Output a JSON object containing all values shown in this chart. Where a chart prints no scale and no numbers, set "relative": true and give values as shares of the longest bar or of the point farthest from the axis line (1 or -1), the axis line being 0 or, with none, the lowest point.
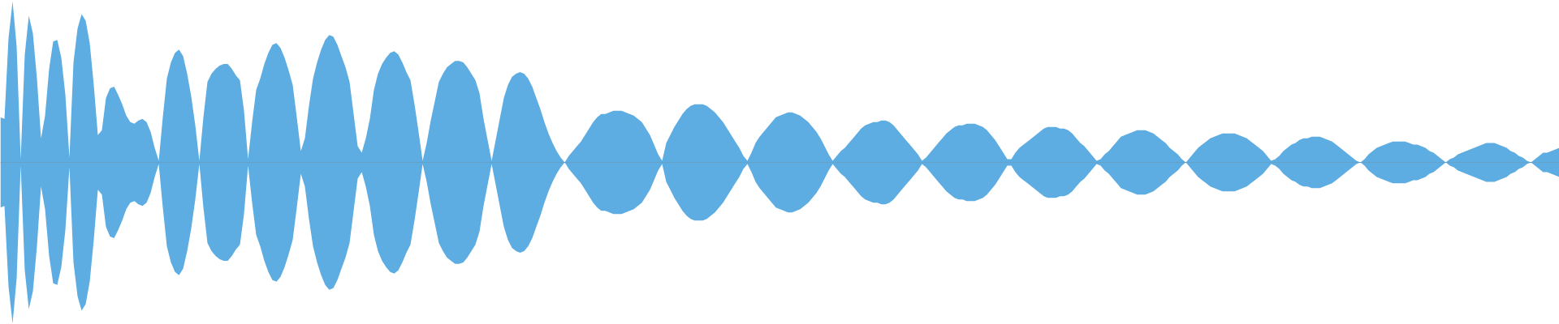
{
  "chart_data": {
    "type": "area",
    "relative": true,
    "tick_labels": false,
    "categories": [
      null,
      null,
      null,
      null,
      null,
      null,
      null,
      null,
      null,
      null,
      null,
      null,
      null,
      null,
      null,
      null,
      null,
      null,
      null,
      null,
      null,
      null,
      null,
      null,
      null,
      null,
      null,
      null,
      null,
      null,
      null,
      null,
      null,
      null,
      null,
      null,
      null,
      null,
      null,
      null,
      null,
      null,
      null,
      null,
      null,
      null,
      null,
      null,
      null,
      null,
      null,
      null,
      null,
      null,
      null,
      null,
      null,
      null,
      null,
      null,
      null,
      null,
      null,
      null,
      null,
      null,
      null,
      null,
      null,
      null,
      null,
      null,
      null,
      null,
      null,
      null,
      null,
      null,
      null,
      null,
      null,
      null,
      null,
      null,
      null,
      null,
      null,
      null,
      null,
      null,
      null,
      null,
      null,
      null,
      null,
      null,
      null,
      null,
      null,
      null,
      null,
      null,
      null,
      null,
      null,
      null,
      null,
      null,
      null,
      null,
      null,
      null,
      null,
      null,
      null,
      null,
      null,
      null,
      null,
      null,
      null,
      null,
      null,
      null,
      null,
      null,
      null,
      null,
      null,
      null,
      null,
      null,
      null,
      null,
      null,
      null,
      null,
      null,
      null,
      null,
      null,
      null,
      null,
      null,
      null,
      null,
      null,
      null,
      null,
      null,
      null,
      null,
      null,
      null,
      null,
      null,
      null,
      null,
      null,
      null,
      null,
      null,
      null,
      null,
      null,
      null,
      null,
      null,
      null,
      null,
      null,
      null,
      null,
      null,
      null,
      null,
      null,
      null,
      null,
      null,
      null,
      null,
      null,
      null,
      null,
      null,
      null,
      null,
      null,
      null,
      null,
      null,
      null,
      null,
      null,
      null,
      null,
      null,
      null,
      null,
      null,
      null,
      null,
      null,
      null,
      null,
      null,
      null,
      null,
      null,
      null,
      null,
      null,
      null,
      null,
      null,
      null,
      null,
      null,
      null,
      null,
      null,
      null,
      null,
      null,
      null,
      null,
      null,
      null,
      null,
      null,
      null,
      null,
      null,
      null,
      null,
      null,
      null,
      null,
      null,
      null,
      null,
      null,
      null,
      null,
      null,
      null,
      null,
      null,
      null,
      null,
      null,
      null,
      null,
      null,
      null,
      null,
      null,
      null,
      null,
      null,
      null,
      null,
      null,
      null,
      null,
      null,
      null,
      null,
      null,
      null,
      null,
      null,
      null,
      null,
      null,
      null,
      null,
      null,
      null,
      null,
      null,
      null,
      null,
      null,
      null,
      null,
      null,
      null,
      null,
      null,
      null,
      null,
      null,
      null,
      null,
      null,
      null,
      null,
      null,
      null,
      null,
      null,
      null,
      null,
      null,
      null,
      null,
      null,
      null,
      null,
      null,
      null,
      null,
      null,
      null,
      null,
      null,
      null,
      null,
      null,
      null,
      null,
      null,
      null,
      null,
      null,
      null,
      null,
      null,
      null,
      null,
      null,
      null,
      null,
      null,
      null,
      null,
      null,
      null,
      null,
      null,
      null,
      null,
      null,
      null,
      null,
      null,
      null,
      null,
      null,
      null,
      null,
      null,
      null,
      null,
      null,
      null,
      null,
      null,
      null,
      null,
      null,
      null,
      null,
      null,
      null,
      null,
      null,
      null,
      null,
      null,
      null,
      null,
      null,
      null,
      null,
      null,
      null,
      null,
      null,
      null,
      null,
      null,
      null
    ],
    "series": [
      {
        "color": "#5dade2",
        "values": [
          0.28,
          0.27,
          0.77,
          1,
          0.72,
          0.02,
          0.67,
          0.91,
          0.8,
          0.52,
          0.15,
          0.29,
          0.58,
          0.75,
          0.76,
          0.65,
          0.42,
          0.03,
          0.62,
          0.83,
          0.92,
          0.88,
          0.74,
          0.48,
          0.17,
          0.2,
          0.4,
          0.46,
          0.47,
          0.42,
          0.36,
          0.29,
          0.25,
          0.24,
          0.26,
          0.27,
          0.25,
          0.19,
          0.09,
          0.01,
          0.28,
          0.52,
          0.62,
          0.68,
          0.7,
          0.66,
          0.55,
          0.41,
          0.23,
          0.01,
          0.28,
          0.5,
          0.55,
          0.58,
          0.6,
          0.61,
          0.61,
          0.58,
          0.54,
          0.51,
          0.32,
          0.02,
          0.25,
          0.45,
          0.52,
          0.61,
          0.68,
          0.73,
          0.74,
          0.71,
          0.65,
          0.57,
          0.48,
          0.28,
          0.07,
          0.15,
          0.35,
          0.52,
          0.62,
          0.7,
          0.76,
          0.79,
          0.78,
          0.73,
          0.66,
          0.59,
          0.5,
          0.3,
          0.1,
          0.06,
          0.15,
          0.27,
          0.45,
          0.55,
          0.61,
          0.65,
          0.68,
          0.69,
          0.67,
          0.62,
          0.56,
          0.51,
          0.36,
          0.19,
          0.01,
          0.12,
          0.26,
          0.38,
          0.5,
          0.55,
          0.59,
          0.61,
          0.63,
          0.63,
          0.62,
          0.59,
          0.55,
          0.51,
          0.43,
          0.27,
          0.14,
          0.01,
          0.14,
          0.27,
          0.4,
          0.48,
          0.53,
          0.55,
          0.56,
          0.55,
          0.52,
          0.47,
          0.4,
          0.33,
          0.25,
          0.18,
          0.12,
          0.07,
          0.03,
          0,
          0.04,
          0.07,
          0.1,
          0.13,
          0.17,
          0.21,
          0.25,
          0.28,
          0.3,
          0.3,
          0.31,
          0.32,
          0.32,
          0.32,
          0.31,
          0.3,
          0.29,
          0.27,
          0.25,
          0.21,
          0.17,
          0.11,
          0.05,
          0.01,
          0.12,
          0.17,
          0.22,
          0.26,
          0.3,
          0.33,
          0.35,
          0.36,
          0.36,
          0.36,
          0.35,
          0.33,
          0.31,
          0.28,
          0.25,
          0.21,
          0.17,
          0.13,
          0.09,
          0.04,
          0.01,
          0.06,
          0.12,
          0.16,
          0.19,
          0.22,
          0.25,
          0.28,
          0.29,
          0.3,
          0.31,
          0.31,
          0.3,
          0.29,
          0.27,
          0.25,
          0.22,
          0.19,
          0.15,
          0.1,
          0.05,
          0.01,
          0.04,
          0.07,
          0.09,
          0.12,
          0.15,
          0.18,
          0.21,
          0.23,
          0.24,
          0.25,
          0.25,
          0.26,
          0.26,
          0.25,
          0.23,
          0.2,
          0.17,
          0.14,
          0.11,
          0.08,
          0.05,
          0.01,
          0.03,
          0.06,
          0.09,
          0.12,
          0.15,
          0.18,
          0.2,
          0.22,
          0.23,
          0.23,
          0.24,
          0.24,
          0.24,
          0.23,
          0.22,
          0.2,
          0.17,
          0.14,
          0.1,
          0.06,
          0.02,
          0.02,
          0.06,
          0.09,
          0.11,
          0.13,
          0.15,
          0.17,
          0.19,
          0.21,
          0.22,
          0.22,
          0.22,
          0.21,
          0.21,
          0.2,
          0.18,
          0.15,
          0.12,
          0.1,
          0.07,
          0.04,
          0.01,
          0.02,
          0.05,
          0.07,
          0.1,
          0.13,
          0.16,
          0.17,
          0.18,
          0.19,
          0.2,
          0.2,
          0.2,
          0.19,
          0.18,
          0.16,
          0.14,
          0.12,
          0.09,
          0.07,
          0.05,
          0.02,
          0,
          0.03,
          0.06,
          0.09,
          0.11,
          0.13,
          0.15,
          0.16,
          0.17,
          0.18,
          0.18,
          0.18,
          0.18,
          0.17,
          0.16,
          0.15,
          0.13,
          0.11,
          0.09,
          0.07,
          0.04,
          0.01,
          0.02,
          0.04,
          0.07,
          0.09,
          0.11,
          0.12,
          0.14,
          0.15,
          0.15,
          0.16,
          0.16,
          0.16,
          0.15,
          0.14,
          0.13,
          0.11,
          0.09,
          0.07,
          0.05,
          0.03,
          0.01,
          0,
          0.02,
          0.05,
          0.07,
          0.09,
          0.1,
          0.11,
          0.12,
          0.13,
          0.13,
          0.13,
          0.13,
          0.12,
          0.11,
          0.11,
          0.1,
          0.09,
          0.07,
          0.06,
          0.04,
          0.02,
          0,
          0.02,
          0.03,
          0.05,
          0.06,
          0.07,
          0.08,
          0.09,
          0.1,
          0.11,
          0.12,
          0.12,
          0.12,
          0.11,
          0.1,
          0.09,
          0.07,
          0.06,
          0.04,
          0.03,
          0.01,
          0,
          0.02,
          0.04,
          0.06,
          0.06,
          0.07,
          0.08,
          0.09
        ]
      },
      {
        "color": "#5dade2",
        "values": [
          -0.28,
          -0.27,
          -0.77,
          -1,
          -0.72,
          -0.02,
          -0.67,
          -0.91,
          -0.8,
          -0.52,
          -0.15,
          -0.29,
          -0.58,
          -0.75,
          -0.76,
          -0.65,
          -0.42,
          -0.03,
          -0.62,
          -0.83,
          -0.92,
          -0.88,
          -0.74,
          -0.48,
          -0.17,
          -0.2,
          -0.4,
          -0.46,
          -0.47,
          -0.42,
          -0.36,
          -0.29,
          -0.25,
          -0.24,
          -0.26,
          -0.27,
          -0.25,
          -0.19,
          -0.09,
          -0.01,
          -0.28,
          -0.52,
          -0.62,
          -0.68,
          -0.7,
          -0.66,
          -0.55,
          -0.41,
          -0.23,
          -0.01,
          -0.28,
          -0.5,
          -0.55,
          -0.58,
          -0.6,
          -0.61,
          -0.61,
          -0.58,
          -0.54,
          -0.51,
          -0.32,
          -0.02,
          -0.25,
          -0.45,
          -0.52,
          -0.61,
          -0.68,
          -0.73,
          -0.74,
          -0.71,
          -0.65,
          -0.57,
          -0.48,
          -0.28,
          -0.07,
          -0.15,
          -0.35,
          -0.52,
          -0.62,
          -0.7,
          -0.76,
          -0.79,
          -0.78,
          -0.73,
          -0.66,
          -0.59,
          -0.5,
          -0.3,
          -0.1,
          -0.06,
          -0.15,
          -0.27,
          -0.45,
          -0.55,
          -0.61,
          -0.65,
          -0.68,
          -0.69,
          -0.67,
          -0.62,
          -0.56,
          -0.51,
          -0.36,
          -0.19,
          -0.01,
          -0.12,
          -0.26,
          -0.38,
          -0.5,
          -0.55,
          -0.59,
          -0.61,
          -0.63,
          -0.63,
          -0.62,
          -0.59,
          -0.55,
          -0.51,
          -0.43,
          -0.27,
          -0.14,
          -0.01,
          -0.14,
          -0.27,
          -0.4,
          -0.48,
          -0.53,
          -0.55,
          -0.56,
          -0.55,
          -0.52,
          -0.47,
          -0.4,
          -0.33,
          -0.25,
          -0.18,
          -0.12,
          -0.07,
          -0.03,
          0,
          -0.04,
          -0.07,
          -0.1,
          -0.13,
          -0.17,
          -0.21,
          -0.25,
          -0.28,
          -0.3,
          -0.3,
          -0.31,
          -0.32,
          -0.32,
          -0.32,
          -0.31,
          -0.3,
          -0.29,
          -0.27,
          -0.25,
          -0.21,
          -0.17,
          -0.11,
          -0.05,
          -0.01,
          -0.12,
          -0.17,
          -0.22,
          -0.26,
          -0.3,
          -0.33,
          -0.35,
          -0.36,
          -0.36,
          -0.36,
          -0.35,
          -0.33,
          -0.31,
          -0.28,
          -0.25,
          -0.21,
          -0.17,
          -0.13,
          -0.09,
          -0.04,
          -0.01,
          -0.06,
          -0.12,
          -0.16,
          -0.19,
          -0.22,
          -0.25,
          -0.28,
          -0.29,
          -0.3,
          -0.31,
          -0.31,
          -0.3,
          -0.29,
          -0.27,
          -0.25,
          -0.22,
          -0.19,
          -0.15,
          -0.1,
          -0.05,
          -0.01,
          -0.04,
          -0.07,
          -0.09,
          -0.12,
          -0.15,
          -0.18,
          -0.21,
          -0.23,
          -0.24,
          -0.25,
          -0.25,
          -0.26,
          -0.26,
          -0.25,
          -0.23,
          -0.2,
          -0.17,
          -0.14,
          -0.11,
          -0.08,
          -0.05,
          -0.01,
          -0.03,
          -0.06,
          -0.09,
          -0.12,
          -0.15,
          -0.18,
          -0.2,
          -0.22,
          -0.23,
          -0.23,
          -0.24,
          -0.24,
          -0.24,
          -0.23,
          -0.22,
          -0.2,
          -0.17,
          -0.14,
          -0.1,
          -0.06,
          -0.02,
          -0.02,
          -0.06,
          -0.09,
          -0.11,
          -0.13,
          -0.15,
          -0.17,
          -0.19,
          -0.21,
          -0.22,
          -0.22,
          -0.22,
          -0.21,
          -0.21,
          -0.2,
          -0.18,
          -0.15,
          -0.12,
          -0.1,
          -0.07,
          -0.04,
          -0.01,
          -0.02,
          -0.05,
          -0.07,
          -0.1,
          -0.13,
          -0.16,
          -0.17,
          -0.18,
          -0.19,
          -0.2,
          -0.2,
          -0.2,
          -0.19,
          -0.18,
          -0.16,
          -0.14,
          -0.12,
          -0.09,
          -0.07,
          -0.05,
          -0.02,
          0,
          -0.03,
          -0.06,
          -0.09,
          -0.11,
          -0.13,
          -0.15,
          -0.16,
          -0.17,
          -0.18,
          -0.18,
          -0.18,
          -0.18,
          -0.17,
          -0.16,
          -0.15,
          -0.13,
          -0.11,
          -0.09,
          -0.07,
          -0.04,
          -0.01,
          -0.02,
          -0.04,
          -0.07,
          -0.09,
          -0.11,
          -0.12,
          -0.14,
          -0.15,
          -0.15,
          -0.16,
          -0.16,
          -0.16,
          -0.15,
          -0.14,
          -0.13,
          -0.11,
          -0.09,
          -0.07,
          -0.05,
          -0.03,
          -0.01,
          0,
          -0.02,
          -0.05,
          -0.07,
          -0.09,
          -0.1,
          -0.11,
          -0.12,
          -0.13,
          -0.13,
          -0.13,
          -0.13,
          -0.12,
          -0.11,
          -0.11,
          -0.1,
          -0.09,
          -0.07,
          -0.06,
          -0.04,
          -0.02,
          0,
          -0.02,
          -0.03,
          -0.05,
          -0.06,
          -0.07,
          -0.08,
          -0.09,
          -0.1,
          -0.11,
          -0.12,
          -0.12,
          -0.12,
          -0.11,
          -0.1,
          -0.09,
          -0.07,
          -0.06,
          -0.04,
          -0.03,
          -0.01,
          0,
          -0.02,
          -0.04,
          -0.06,
          -0.06,
          -0.07,
          -0.08,
          -0.09
        ]
      }
    ]
  }
}
